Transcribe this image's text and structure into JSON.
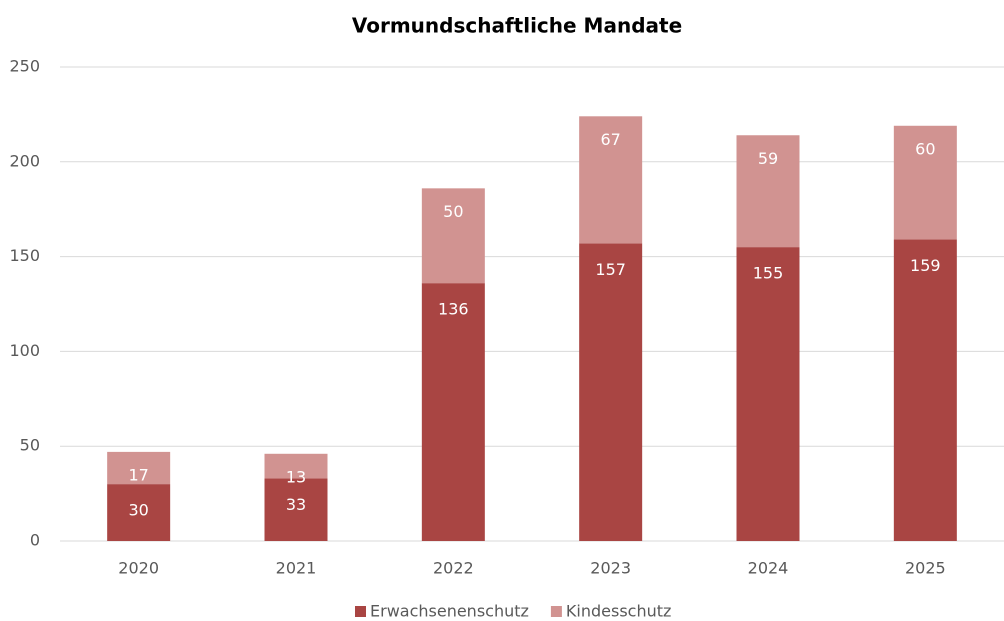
{
  "chart_data": {
    "type": "stacked_bar",
    "title": "Vormundschaftliche Mandate",
    "categories": [
      "2020",
      "2021",
      "2022",
      "2023",
      "2024",
      "2025"
    ],
    "series": [
      {
        "name": "Erwachsenenschutz",
        "color": "#a94543",
        "values": [
          30,
          33,
          136,
          157,
          155,
          159
        ]
      },
      {
        "name": "Kindesschutz",
        "color": "#d19391",
        "values": [
          17,
          13,
          50,
          67,
          59,
          60
        ]
      }
    ],
    "ylim": [
      0,
      250
    ],
    "yticks": [
      0,
      50,
      100,
      150,
      200,
      250
    ],
    "grid": true,
    "legend": "bottom"
  }
}
